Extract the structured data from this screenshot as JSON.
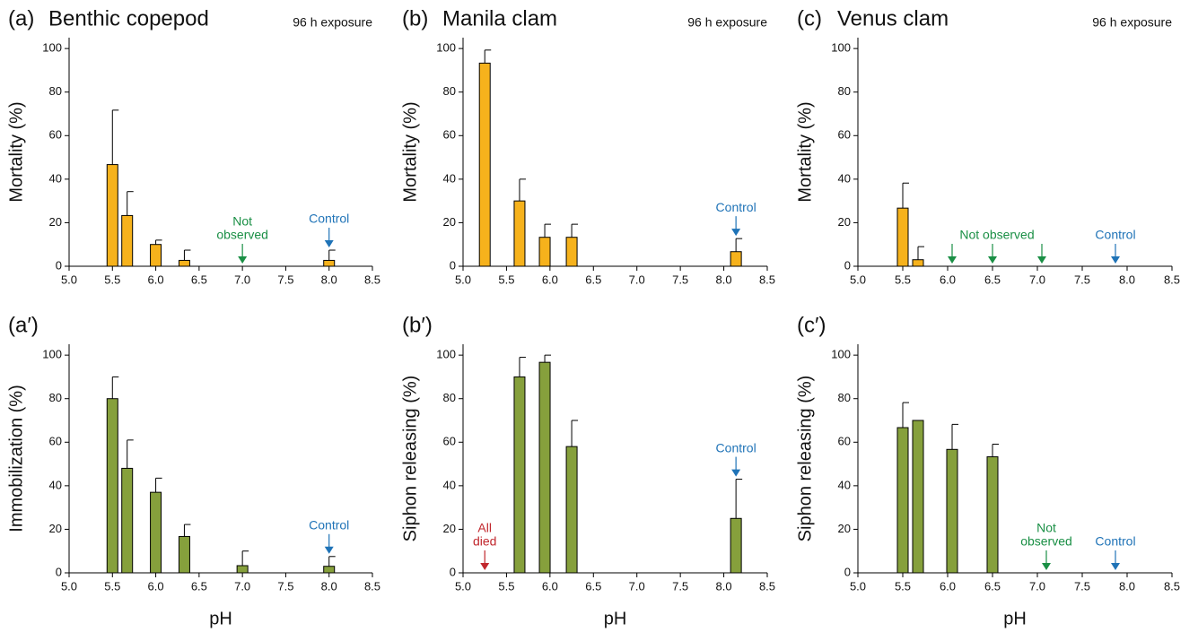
{
  "chart_data": [
    {
      "type": "bar",
      "panel_label": "(a)",
      "title": "Benthic copepod",
      "subtitle": "96 h exposure",
      "ylabel": "Mortality (%)",
      "x": [
        5.5,
        5.67,
        6.0,
        6.33,
        8.0
      ],
      "values": [
        46.7,
        23.3,
        10,
        2.7,
        2.7
      ],
      "errors": [
        25,
        11,
        2,
        4.7,
        4.7
      ],
      "color": "#f6b21c",
      "xlim": [
        5,
        8.5
      ],
      "xticks": [
        {
          "value": 5,
          "label": "5.0"
        },
        {
          "value": 5.5,
          "label": "5.5"
        },
        {
          "value": 6,
          "label": "6.0"
        },
        {
          "value": 6.5,
          "label": "6.5"
        },
        {
          "value": 7,
          "label": "7.0"
        },
        {
          "value": 7.5,
          "label": "7.5"
        },
        {
          "value": 8,
          "label": "8.0"
        },
        {
          "value": 8.5,
          "label": "8.5"
        }
      ],
      "ylim": [
        0,
        105
      ],
      "yticks": [
        0,
        20,
        40,
        60,
        80,
        100
      ],
      "annotations": [
        {
          "text": [
            "Not",
            "observed"
          ],
          "x": [
            7.0
          ],
          "color": "#1a8f45"
        },
        {
          "text": [
            "Control"
          ],
          "x": [
            8.0
          ],
          "color": "#1f73b7"
        }
      ]
    },
    {
      "type": "bar",
      "panel_label": "(b)",
      "title": "Manila clam",
      "subtitle": "96 h exposure",
      "ylabel": "Mortality (%)",
      "x": [
        5.25,
        5.65,
        5.94,
        6.25,
        8.14
      ],
      "values": [
        93.3,
        30,
        13.3,
        13.3,
        6.7
      ],
      "errors": [
        6,
        10,
        6,
        6,
        6
      ],
      "color": "#f6b21c",
      "xlim": [
        5,
        8.5
      ],
      "xticks": [
        {
          "value": 5,
          "label": "5.0"
        },
        {
          "value": 5.5,
          "label": "5.5"
        },
        {
          "value": 6,
          "label": "6.0"
        },
        {
          "value": 6.5,
          "label": "6.5"
        },
        {
          "value": 7,
          "label": "7.0"
        },
        {
          "value": 7.5,
          "label": "7.5"
        },
        {
          "value": 8,
          "label": "8.0"
        },
        {
          "value": 8.5,
          "label": "8.5"
        }
      ],
      "ylim": [
        0,
        105
      ],
      "yticks": [
        0,
        20,
        40,
        60,
        80,
        100
      ],
      "annotations": [
        {
          "text": [
            "Control"
          ],
          "x": [
            8.14
          ],
          "color": "#1f73b7"
        }
      ]
    },
    {
      "type": "bar",
      "panel_label": "(c)",
      "title": "Venus clam",
      "subtitle": "96 h exposure",
      "ylabel": "Mortality (%)",
      "x": [
        5.5,
        5.67
      ],
      "values": [
        26.7,
        3
      ],
      "errors": [
        11.5,
        6
      ],
      "color": "#f6b21c",
      "xlim": [
        5,
        8.5
      ],
      "xticks": [
        {
          "value": 5,
          "label": "5.0"
        },
        {
          "value": 5.5,
          "label": "5.5"
        },
        {
          "value": 6,
          "label": "6.0"
        },
        {
          "value": 6.5,
          "label": "6.5"
        },
        {
          "value": 7,
          "label": "7.0"
        },
        {
          "value": 7.5,
          "label": "7.5"
        },
        {
          "value": 8,
          "label": "8.0"
        },
        {
          "value": 8.5,
          "label": "8.5"
        }
      ],
      "ylim": [
        0,
        105
      ],
      "yticks": [
        0,
        20,
        40,
        60,
        80,
        100
      ],
      "annotations": [
        {
          "text": [
            "Not observed"
          ],
          "x": [
            6.05,
            6.5,
            7.05
          ],
          "color": "#1a8f45"
        },
        {
          "text": [
            "Control"
          ],
          "x": [
            7.87
          ],
          "color": "#1f73b7"
        }
      ]
    },
    {
      "type": "bar",
      "panel_label": "(a′)",
      "ylabel": "Immobilization (%)",
      "xlabel": "pH",
      "x": [
        5.5,
        5.67,
        6.0,
        6.33,
        7.0,
        8.0
      ],
      "values": [
        80,
        48,
        37,
        16.7,
        3.3,
        3
      ],
      "errors": [
        10,
        13,
        6.5,
        5.5,
        6.7,
        4.5
      ],
      "color": "#86a03c",
      "xlim": [
        5,
        8.5
      ],
      "xticks": [
        {
          "value": 5,
          "label": "5.0"
        },
        {
          "value": 5.5,
          "label": "5.5"
        },
        {
          "value": 6,
          "label": "6.0"
        },
        {
          "value": 6.5,
          "label": "6.5"
        },
        {
          "value": 7,
          "label": "7.0"
        },
        {
          "value": 7.5,
          "label": "7.5"
        },
        {
          "value": 8,
          "label": "8.0"
        },
        {
          "value": 8.5,
          "label": "8.5"
        }
      ],
      "ylim": [
        0,
        105
      ],
      "yticks": [
        0,
        20,
        40,
        60,
        80,
        100
      ],
      "annotations": [
        {
          "text": [
            "Control"
          ],
          "x": [
            8.0
          ],
          "color": "#1f73b7"
        }
      ]
    },
    {
      "type": "bar",
      "panel_label": "(b′)",
      "ylabel": "Siphon releasing (%)",
      "xlabel": "pH",
      "x": [
        5.65,
        5.94,
        6.25,
        8.14
      ],
      "values": [
        90,
        96.7,
        58,
        25
      ],
      "errors": [
        9,
        3.3,
        12,
        18
      ],
      "color": "#86a03c",
      "xlim": [
        5,
        8.5
      ],
      "xticks": [
        {
          "value": 5,
          "label": "5.0"
        },
        {
          "value": 5.5,
          "label": "5.5"
        },
        {
          "value": 6,
          "label": "6.0"
        },
        {
          "value": 6.5,
          "label": "6.5"
        },
        {
          "value": 7,
          "label": "7.0"
        },
        {
          "value": 7.5,
          "label": "7.5"
        },
        {
          "value": 8,
          "label": "8.0"
        },
        {
          "value": 8.5,
          "label": "8.5"
        }
      ],
      "ylim": [
        0,
        105
      ],
      "yticks": [
        0,
        20,
        40,
        60,
        80,
        100
      ],
      "annotations": [
        {
          "text": [
            "All",
            "died"
          ],
          "x": [
            5.25
          ],
          "color": "#c1272d"
        },
        {
          "text": [
            "Control"
          ],
          "x": [
            8.14
          ],
          "color": "#1f73b7"
        }
      ]
    },
    {
      "type": "bar",
      "panel_label": "(c′)",
      "ylabel": "Siphon releasing (%)",
      "xlabel": "pH",
      "x": [
        5.5,
        5.67,
        6.05,
        6.5
      ],
      "values": [
        66.7,
        70,
        56.7,
        53.3
      ],
      "errors": [
        11.5,
        0,
        11.5,
        5.8
      ],
      "color": "#86a03c",
      "xlim": [
        5,
        8.5
      ],
      "xticks": [
        {
          "value": 5,
          "label": "5.0"
        },
        {
          "value": 5.5,
          "label": "5.5"
        },
        {
          "value": 6,
          "label": "6.0"
        },
        {
          "value": 6.5,
          "label": "6.5"
        },
        {
          "value": 7,
          "label": "7.0"
        },
        {
          "value": 7.5,
          "label": "7.5"
        },
        {
          "value": 8,
          "label": "8.0"
        },
        {
          "value": 8.5,
          "label": "8.5"
        }
      ],
      "ylim": [
        0,
        105
      ],
      "yticks": [
        0,
        20,
        40,
        60,
        80,
        100
      ],
      "annotations": [
        {
          "text": [
            "Not",
            "observed"
          ],
          "x": [
            7.1
          ],
          "color": "#1a8f45"
        },
        {
          "text": [
            "Control"
          ],
          "x": [
            7.87
          ],
          "color": "#1f73b7"
        }
      ]
    }
  ]
}
